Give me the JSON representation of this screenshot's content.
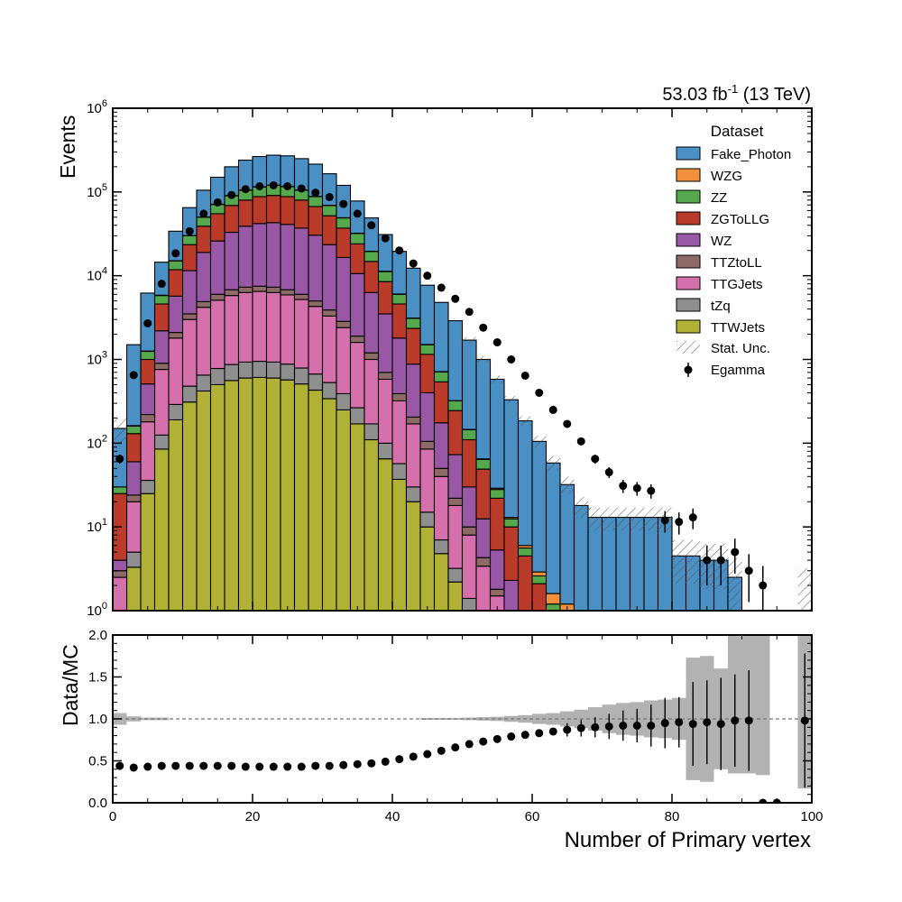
{
  "chart_data": [
    {
      "type": "bar",
      "subtype": "stacked-histogram",
      "title": "",
      "lumi_label": "53.03 fb",
      "lumi_exponent": "-1",
      "lumi_energy": " (13 TeV)",
      "ylabel": "Events",
      "xlabel": "Number of Primary vertex",
      "yscale": "log",
      "ylim": [
        1,
        1000000
      ],
      "xlim": [
        0,
        100
      ],
      "bin_width": 2,
      "y_tick_labels": [
        {
          "base": "10",
          "exp": "0",
          "value": 1
        },
        {
          "base": "10",
          "exp": "1",
          "value": 10
        },
        {
          "base": "10",
          "exp": "2",
          "value": 100
        },
        {
          "base": "10",
          "exp": "3",
          "value": 1000
        },
        {
          "base": "10",
          "exp": "4",
          "value": 10000
        },
        {
          "base": "10",
          "exp": "5",
          "value": 100000
        },
        {
          "base": "10",
          "exp": "6",
          "value": 1000000
        }
      ],
      "legend_title": "Dataset",
      "legend_position": "top-right",
      "legend_labels": {
        "stat": "Stat. Unc.",
        "data": "Egamma"
      },
      "colors": {
        "Fake_Photon": "#4a90c4",
        "WZG": "#f18f3b",
        "ZZ": "#55a84b",
        "ZGToLLG": "#ba3b2a",
        "WZ": "#9858a6",
        "TTZtoLL": "#8d6a66",
        "TTGJets": "#d670ad",
        "tZq": "#8f8f8f",
        "TTWJets": "#b1b135",
        "data": "#000000"
      },
      "legend_order": [
        "Fake_Photon",
        "WZG",
        "ZZ",
        "ZGToLLG",
        "WZ",
        "TTZtoLL",
        "TTGJets",
        "tZq",
        "TTWJets"
      ],
      "stack_order": [
        "TTWJets",
        "tZq",
        "TTGJets",
        "TTZtoLL",
        "WZ",
        "ZGToLLG",
        "ZZ",
        "WZG",
        "Fake_Photon"
      ],
      "cumulative": {
        "TTWJets": [
          0,
          3.3,
          25,
          85,
          190,
          310,
          420,
          500,
          560,
          600,
          610,
          600,
          570,
          510,
          430,
          340,
          250,
          170,
          110,
          65,
          37,
          20,
          10,
          4.8,
          2.2,
          1,
          0,
          0,
          0,
          0,
          0,
          0,
          0,
          0,
          0,
          0,
          0,
          0,
          0,
          0,
          0,
          0,
          0,
          0,
          0,
          0,
          0,
          0,
          0,
          0
        ],
        "tZq": [
          0,
          5,
          36,
          125,
          290,
          480,
          650,
          780,
          870,
          930,
          950,
          930,
          880,
          790,
          670,
          530,
          390,
          265,
          170,
          100,
          57,
          30,
          15,
          7,
          3.2,
          1.4,
          0,
          0,
          0,
          0,
          0,
          0,
          0,
          0,
          0,
          0,
          0,
          0,
          0,
          0,
          0,
          0,
          0,
          0,
          0,
          0,
          0,
          0,
          0,
          0
        ],
        "TTGJets": [
          2.5,
          20,
          180,
          760,
          1800,
          3000,
          4200,
          5100,
          5800,
          6300,
          6500,
          6300,
          5900,
          5200,
          4300,
          3300,
          2400,
          1600,
          1000,
          580,
          320,
          170,
          85,
          40,
          18,
          8,
          3.4,
          1.5,
          0,
          0,
          0,
          0,
          0,
          0,
          0,
          0,
          0,
          0,
          0,
          0,
          0,
          0,
          0,
          0,
          0,
          0,
          0,
          0,
          0,
          0
        ],
        "TTZtoLL": [
          3,
          24,
          220,
          900,
          2100,
          3500,
          4900,
          6000,
          6800,
          7300,
          7500,
          7300,
          6800,
          6000,
          5000,
          3900,
          2850,
          1900,
          1200,
          700,
          390,
          205,
          105,
          50,
          22,
          10,
          4.3,
          1.8,
          0,
          0,
          0,
          0,
          0,
          0,
          0,
          0,
          0,
          0,
          0,
          0,
          0,
          0,
          0,
          0,
          0,
          0,
          0,
          0,
          0,
          0
        ],
        "WZ": [
          4,
          60,
          510,
          2200,
          5700,
          11500,
          19000,
          26000,
          33000,
          39000,
          42000,
          43000,
          41000,
          37000,
          30500,
          23500,
          16500,
          10600,
          6300,
          3500,
          1800,
          880,
          400,
          175,
          73,
          30,
          12.5,
          5.3,
          2.3,
          1,
          0,
          0,
          0,
          0,
          0,
          0,
          0,
          0,
          0,
          0,
          0,
          0,
          0,
          0,
          0,
          0,
          0,
          0,
          0,
          0
        ],
        "ZGToLLG": [
          25,
          130,
          1000,
          4600,
          11800,
          23500,
          39000,
          55000,
          69000,
          80000,
          88000,
          91000,
          88000,
          80000,
          67000,
          52000,
          37000,
          24000,
          14800,
          8500,
          4600,
          2350,
          1150,
          540,
          245,
          110,
          49,
          22,
          10,
          4.5,
          2.1,
          1,
          0,
          0,
          0,
          0,
          0,
          0,
          0,
          0,
          0,
          0,
          0,
          0,
          0,
          0,
          0,
          0,
          0,
          0
        ],
        "ZZ": [
          30,
          160,
          1250,
          5800,
          15000,
          30000,
          50000,
          71000,
          90000,
          105000,
          115000,
          120000,
          116000,
          105000,
          88000,
          69000,
          49000,
          32000,
          19500,
          11200,
          6000,
          3100,
          1500,
          710,
          320,
          145,
          64,
          28,
          12.5,
          5.6,
          2.6,
          1.2,
          0,
          0,
          0,
          0,
          0,
          0,
          0,
          0,
          0,
          0,
          0,
          0,
          0,
          0,
          0,
          0,
          0,
          0
        ],
        "WZG": [
          30,
          162,
          1260,
          5850,
          15100,
          30200,
          50300,
          71400,
          90500,
          105600,
          115600,
          120600,
          116600,
          105600,
          88500,
          69400,
          49300,
          32200,
          19600,
          11300,
          6050,
          3120,
          1510,
          715,
          322,
          146,
          65,
          29,
          13,
          6,
          2.9,
          1.6,
          1.2,
          0,
          0,
          0,
          0,
          0,
          0,
          0,
          0,
          0,
          0,
          0,
          0,
          0,
          0,
          0,
          0,
          0
        ],
        "Fake_Photon": [
          150,
          1500,
          6200,
          14500,
          34000,
          65000,
          105000,
          150000,
          200000,
          240000,
          265000,
          275000,
          270000,
          250000,
          215000,
          165000,
          120000,
          78000,
          49000,
          31000,
          19500,
          12300,
          7700,
          4800,
          2900,
          1700,
          1000,
          580,
          330,
          185,
          105,
          58,
          32,
          18,
          13,
          13,
          13,
          13,
          13,
          13,
          4.5,
          4.5,
          4,
          4,
          2.5,
          0,
          0,
          0,
          0,
          0
        ]
      },
      "stat_unc_bands": [
        {
          "bin": 0,
          "lo": 100,
          "hi": 200
        },
        {
          "bin": 25,
          "lo": 1550,
          "hi": 1850
        },
        {
          "bin": 26,
          "lo": 900,
          "hi": 1100
        },
        {
          "bin": 27,
          "lo": 520,
          "hi": 640
        },
        {
          "bin": 28,
          "lo": 295,
          "hi": 365
        },
        {
          "bin": 29,
          "lo": 160,
          "hi": 210
        },
        {
          "bin": 30,
          "lo": 88,
          "hi": 122
        },
        {
          "bin": 31,
          "lo": 47,
          "hi": 70
        },
        {
          "bin": 32,
          "lo": 25,
          "hi": 40
        },
        {
          "bin": 33,
          "lo": 13,
          "hi": 23
        },
        {
          "bin": 34,
          "lo": 9,
          "hi": 17
        },
        {
          "bin": 35,
          "lo": 9,
          "hi": 17
        },
        {
          "bin": 36,
          "lo": 9,
          "hi": 17
        },
        {
          "bin": 37,
          "lo": 9,
          "hi": 17
        },
        {
          "bin": 38,
          "lo": 9,
          "hi": 17
        },
        {
          "bin": 39,
          "lo": 9,
          "hi": 17
        },
        {
          "bin": 40,
          "lo": 2.1,
          "hi": 7
        },
        {
          "bin": 41,
          "lo": 2.1,
          "hi": 7
        },
        {
          "bin": 42,
          "lo": 1.8,
          "hi": 6.3
        },
        {
          "bin": 43,
          "lo": 1.8,
          "hi": 6.3
        },
        {
          "bin": 44,
          "lo": 1,
          "hi": 4.3
        },
        {
          "bin": 49,
          "lo": 1,
          "hi": 3.2
        }
      ],
      "data_points": [
        {
          "x": 1,
          "y": 65
        },
        {
          "x": 3,
          "y": 650
        },
        {
          "x": 5,
          "y": 2700
        },
        {
          "x": 7,
          "y": 8000
        },
        {
          "x": 9,
          "y": 18500
        },
        {
          "x": 11,
          "y": 34000
        },
        {
          "x": 13,
          "y": 55000
        },
        {
          "x": 15,
          "y": 75000
        },
        {
          "x": 17,
          "y": 92000
        },
        {
          "x": 19,
          "y": 108000
        },
        {
          "x": 21,
          "y": 117000
        },
        {
          "x": 23,
          "y": 120000
        },
        {
          "x": 25,
          "y": 117000
        },
        {
          "x": 27,
          "y": 110000
        },
        {
          "x": 29,
          "y": 98000
        },
        {
          "x": 31,
          "y": 87000
        },
        {
          "x": 33,
          "y": 72000
        },
        {
          "x": 35,
          "y": 55000
        },
        {
          "x": 37,
          "y": 40000
        },
        {
          "x": 39,
          "y": 28000
        },
        {
          "x": 41,
          "y": 20000
        },
        {
          "x": 43,
          "y": 14000
        },
        {
          "x": 45,
          "y": 10000
        },
        {
          "x": 47,
          "y": 7200
        },
        {
          "x": 49,
          "y": 5300
        },
        {
          "x": 51,
          "y": 3700
        },
        {
          "x": 53,
          "y": 2400
        },
        {
          "x": 55,
          "y": 1600
        },
        {
          "x": 57,
          "y": 1000
        },
        {
          "x": 59,
          "y": 640
        },
        {
          "x": 61,
          "y": 400
        },
        {
          "x": 63,
          "y": 250
        },
        {
          "x": 65,
          "y": 170
        },
        {
          "x": 67,
          "y": 105
        },
        {
          "x": 69,
          "y": 65
        },
        {
          "x": 71,
          "y": 45
        },
        {
          "x": 73,
          "y": 31
        },
        {
          "x": 75,
          "y": 29
        },
        {
          "x": 77,
          "y": 27
        },
        {
          "x": 79,
          "y": 12
        },
        {
          "x": 81,
          "y": 11.5
        },
        {
          "x": 83,
          "y": 13
        },
        {
          "x": 85,
          "y": 4
        },
        {
          "x": 87,
          "y": 4
        },
        {
          "x": 89,
          "y": 5
        },
        {
          "x": 91,
          "y": 3
        },
        {
          "x": 93,
          "y": 2
        }
      ]
    },
    {
      "type": "scatter",
      "subtype": "ratio",
      "ylabel": "Data/MC",
      "xlabel": "Number of Primary vertex",
      "xlim": [
        0,
        100
      ],
      "ylim": [
        0,
        2
      ],
      "x_ticks": [
        "0",
        "20",
        "40",
        "60",
        "80",
        "100"
      ],
      "y_ticks": [
        "0.0",
        "0.5",
        "1.0",
        "1.5",
        "2.0"
      ],
      "reference_line": 1,
      "unc_bands": [
        {
          "x0": 0,
          "x1": 2,
          "lo": 0.93,
          "hi": 1.07
        },
        {
          "x0": 2,
          "x1": 4,
          "lo": 0.97,
          "hi": 1.03
        },
        {
          "x0": 4,
          "x1": 8,
          "lo": 0.985,
          "hi": 1.015
        },
        {
          "x0": 44,
          "x1": 50,
          "lo": 0.99,
          "hi": 1.01
        },
        {
          "x0": 50,
          "x1": 52,
          "lo": 0.985,
          "hi": 1.015
        },
        {
          "x0": 52,
          "x1": 54,
          "lo": 0.98,
          "hi": 1.02
        },
        {
          "x0": 54,
          "x1": 56,
          "lo": 0.975,
          "hi": 1.025
        },
        {
          "x0": 56,
          "x1": 58,
          "lo": 0.965,
          "hi": 1.035
        },
        {
          "x0": 58,
          "x1": 60,
          "lo": 0.955,
          "hi": 1.045
        },
        {
          "x0": 60,
          "x1": 62,
          "lo": 0.94,
          "hi": 1.06
        },
        {
          "x0": 62,
          "x1": 64,
          "lo": 0.93,
          "hi": 1.07
        },
        {
          "x0": 64,
          "x1": 66,
          "lo": 0.91,
          "hi": 1.09
        },
        {
          "x0": 66,
          "x1": 68,
          "lo": 0.89,
          "hi": 1.11
        },
        {
          "x0": 68,
          "x1": 70,
          "lo": 0.86,
          "hi": 1.14
        },
        {
          "x0": 70,
          "x1": 72,
          "lo": 0.83,
          "hi": 1.17
        },
        {
          "x0": 72,
          "x1": 74,
          "lo": 0.81,
          "hi": 1.19
        },
        {
          "x0": 74,
          "x1": 76,
          "lo": 0.8,
          "hi": 1.2
        },
        {
          "x0": 76,
          "x1": 78,
          "lo": 0.78,
          "hi": 1.22
        },
        {
          "x0": 78,
          "x1": 80,
          "lo": 0.77,
          "hi": 1.23
        },
        {
          "x0": 80,
          "x1": 82,
          "lo": 0.75,
          "hi": 1.25
        },
        {
          "x0": 82,
          "x1": 84,
          "lo": 0.27,
          "hi": 1.73
        },
        {
          "x0": 84,
          "x1": 86,
          "lo": 0.25,
          "hi": 1.75
        },
        {
          "x0": 86,
          "x1": 88,
          "lo": 0.4,
          "hi": 1.6
        },
        {
          "x0": 88,
          "x1": 92,
          "lo": 0.35,
          "hi": 2
        },
        {
          "x0": 92,
          "x1": 94,
          "lo": 0.33,
          "hi": 2
        },
        {
          "x0": 98,
          "x1": 100,
          "lo": 0.17,
          "hi": 2
        }
      ],
      "points": [
        {
          "x": 1,
          "y": 0.44
        },
        {
          "x": 3,
          "y": 0.42
        },
        {
          "x": 5,
          "y": 0.43
        },
        {
          "x": 7,
          "y": 0.44
        },
        {
          "x": 9,
          "y": 0.44
        },
        {
          "x": 11,
          "y": 0.44
        },
        {
          "x": 13,
          "y": 0.44
        },
        {
          "x": 15,
          "y": 0.44
        },
        {
          "x": 17,
          "y": 0.44
        },
        {
          "x": 19,
          "y": 0.43
        },
        {
          "x": 21,
          "y": 0.43
        },
        {
          "x": 23,
          "y": 0.43
        },
        {
          "x": 25,
          "y": 0.43
        },
        {
          "x": 27,
          "y": 0.43
        },
        {
          "x": 29,
          "y": 0.44
        },
        {
          "x": 31,
          "y": 0.44
        },
        {
          "x": 33,
          "y": 0.45
        },
        {
          "x": 35,
          "y": 0.46
        },
        {
          "x": 37,
          "y": 0.47
        },
        {
          "x": 39,
          "y": 0.49
        },
        {
          "x": 41,
          "y": 0.52
        },
        {
          "x": 43,
          "y": 0.55
        },
        {
          "x": 45,
          "y": 0.58
        },
        {
          "x": 47,
          "y": 0.62
        },
        {
          "x": 49,
          "y": 0.66
        },
        {
          "x": 51,
          "y": 0.7
        },
        {
          "x": 53,
          "y": 0.73
        },
        {
          "x": 55,
          "y": 0.76
        },
        {
          "x": 57,
          "y": 0.79
        },
        {
          "x": 59,
          "y": 0.81
        },
        {
          "x": 61,
          "y": 0.83
        },
        {
          "x": 63,
          "y": 0.85
        },
        {
          "x": 65,
          "y": 0.87,
          "err": 0.08
        },
        {
          "x": 67,
          "y": 0.89,
          "err": 0.1
        },
        {
          "x": 69,
          "y": 0.9,
          "err": 0.12
        },
        {
          "x": 71,
          "y": 0.91,
          "err": 0.15
        },
        {
          "x": 73,
          "y": 0.92,
          "err": 0.18
        },
        {
          "x": 75,
          "y": 0.92,
          "err": 0.2
        },
        {
          "x": 77,
          "y": 0.92,
          "err": 0.25
        },
        {
          "x": 79,
          "y": 0.95,
          "err": 0.3
        },
        {
          "x": 81,
          "y": 0.96,
          "err": 0.3
        },
        {
          "x": 83,
          "y": 0.94,
          "err": 0.5
        },
        {
          "x": 85,
          "y": 0.96,
          "err": 0.5
        },
        {
          "x": 87,
          "y": 0.94,
          "err": 0.55
        },
        {
          "x": 89,
          "y": 0.98,
          "err": 0.55
        },
        {
          "x": 91,
          "y": 0.98,
          "err": 0.6
        },
        {
          "x": 93,
          "y": 0
        },
        {
          "x": 95,
          "y": 0
        },
        {
          "x": 99,
          "y": 0.98,
          "err": 0.8
        }
      ]
    }
  ]
}
